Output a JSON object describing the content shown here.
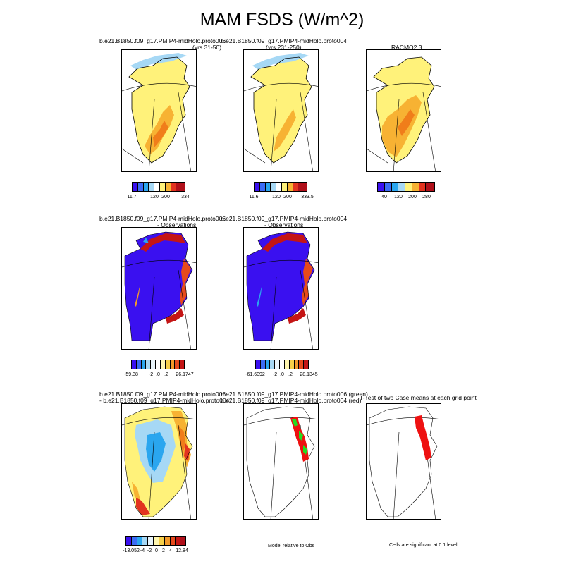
{
  "title": "MAM FSDS (W/m^2)",
  "row1": {
    "p1": {
      "title1": "b.e21.B1850.f09_g17.PMIP4-midHolo.proto006",
      "title2": "(yrs 31-50)",
      "ticks": [
        "11.7",
        "120",
        "200",
        "334"
      ]
    },
    "p2": {
      "title1": "b.e21.B1850.f09_g17.PMIP4-midHolo.proto004",
      "title2": "(yrs 231-250)",
      "ticks": [
        "11.6",
        "120",
        "200",
        "333.5"
      ]
    },
    "p3": {
      "title1": "RACMO2.3",
      "ticks": [
        "40",
        "120",
        "200",
        "280"
      ]
    }
  },
  "row2": {
    "p1": {
      "title1": "b.e21.B1850.f09_g17.PMIP4-midHolo.proto006",
      "title2": "- Observations",
      "ticks": [
        "-59.38",
        "-2",
        ".0",
        ".2",
        "26.1747"
      ]
    },
    "p2": {
      "title1": "b.e21.B1850.f09_g17.PMIP4-midHolo.proto004",
      "title2": "- Observations",
      "ticks": [
        "-61.6092",
        "-2",
        ".0",
        ".2",
        "28.1345"
      ]
    }
  },
  "row3": {
    "p1": {
      "title1": "b.e21.B1850.f09_g17.PMIP4-midHolo.proto006",
      "title2": "- b.e21.B1850.f09_g17.PMIP4-midHolo.proto004",
      "ticks": [
        "-13.052",
        "-4",
        "-2",
        "0",
        "2",
        "4",
        "12.84"
      ]
    },
    "p2": {
      "title1": "b.e21.B1850.f09_g17.PMIP4-midHolo.proto006 (green)",
      "title2": "b.e21.B1850.f09_g17.PMIP4-midHolo.proto004 (red)",
      "note": "Model relative to Obs"
    },
    "p3": {
      "title1": "T-Test of two Case means at each grid point",
      "note": "Cells are significant at 0.1 level"
    }
  },
  "colors": {
    "abs_scale": [
      "#3a10f0",
      "#3b6cf5",
      "#2aa6ef",
      "#a6d8f5",
      "#ffffff",
      "#fff27a",
      "#f7b233",
      "#f07d1a",
      "#e2331f",
      "#b0101a"
    ],
    "diff_scale": [
      "#3a10f0",
      "#3b6cf5",
      "#2aa6ef",
      "#a6d8f5",
      "#e8f4fb",
      "#ffffff",
      "#fff6b0",
      "#f7d04a",
      "#f29a2a",
      "#e64a1c",
      "#c41515"
    ],
    "green": "#22dd22",
    "red": "#ee1111"
  }
}
